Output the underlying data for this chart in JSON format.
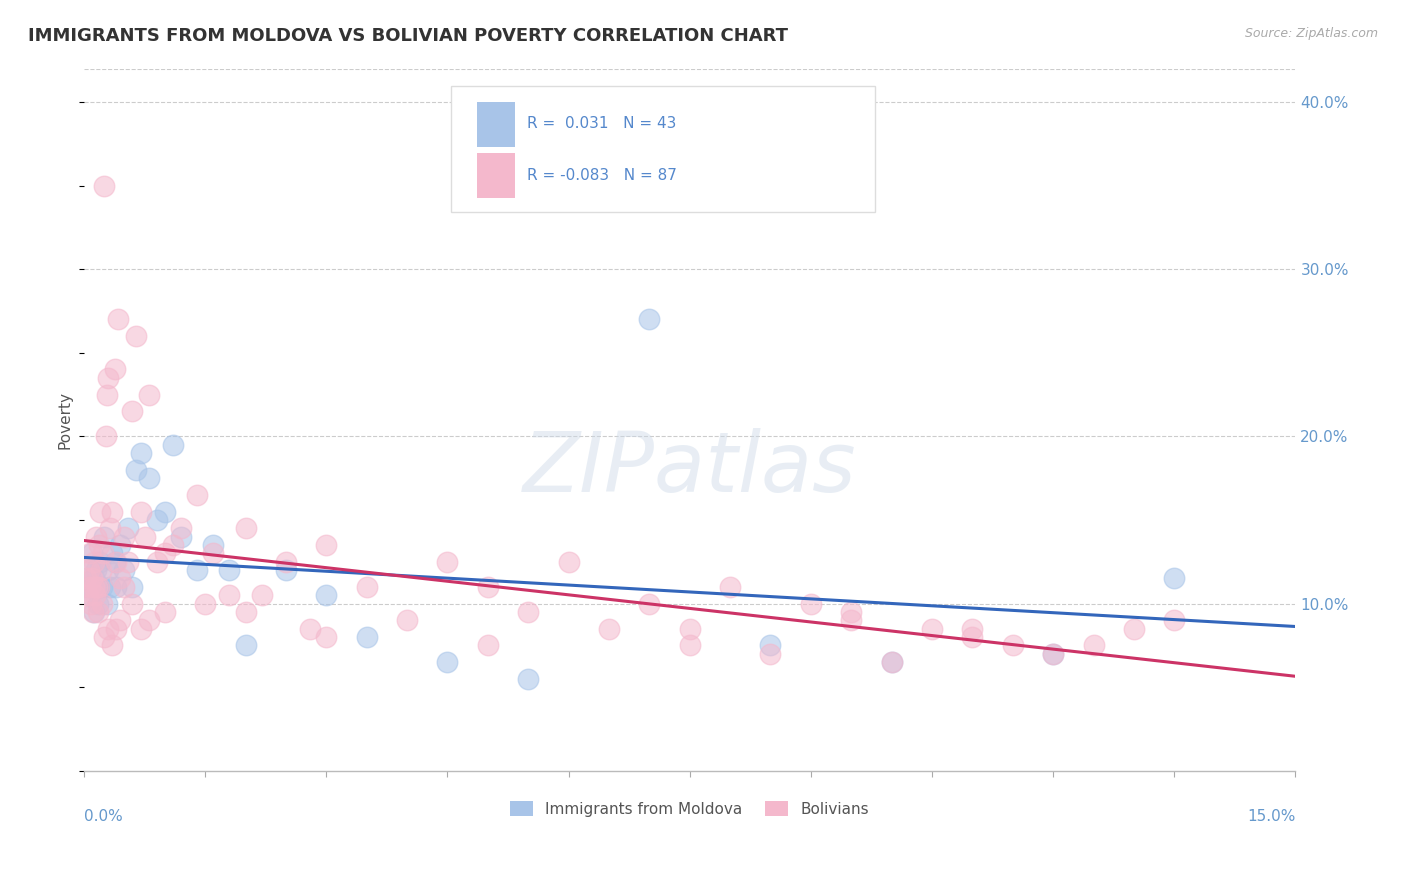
{
  "title": "IMMIGRANTS FROM MOLDOVA VS BOLIVIAN POVERTY CORRELATION CHART",
  "source": "Source: ZipAtlas.com",
  "xlabel_ticks": [
    "0.0%",
    "15.0%"
  ],
  "ylabel_label": "Poverty",
  "xlim": [
    0.0,
    15.0
  ],
  "ylim": [
    0.0,
    42.0
  ],
  "yticks": [
    10.0,
    20.0,
    30.0,
    40.0
  ],
  "ytick_labels": [
    "10.0%",
    "20.0%",
    "30.0%",
    "40.0%"
  ],
  "background_color": "#ffffff",
  "grid_color": "#cccccc",
  "watermark": "ZIPatlas",
  "legend_R1": "R =  0.031",
  "legend_N1": "N = 43",
  "legend_R2": "R = -0.083",
  "legend_N2": "N = 87",
  "series": [
    {
      "name": "Immigrants from Moldova",
      "color": "#a8c4e8",
      "edge_color": "#a8c4e8",
      "line_color": "#3366bb",
      "trend_start_y": 11.5,
      "trend_end_y": 12.5,
      "x": [
        0.05,
        0.07,
        0.08,
        0.1,
        0.12,
        0.13,
        0.15,
        0.17,
        0.18,
        0.2,
        0.22,
        0.25,
        0.28,
        0.3,
        0.32,
        0.35,
        0.38,
        0.4,
        0.45,
        0.5,
        0.55,
        0.6,
        0.65,
        0.7,
        0.8,
        0.9,
        1.0,
        1.1,
        1.2,
        1.4,
        1.6,
        1.8,
        2.0,
        2.5,
        3.0,
        3.5,
        4.5,
        5.5,
        7.0,
        8.5,
        10.0,
        12.0,
        13.5
      ],
      "y": [
        11.0,
        12.0,
        10.5,
        13.0,
        11.5,
        9.5,
        12.0,
        10.0,
        11.0,
        12.5,
        11.0,
        14.0,
        10.0,
        12.0,
        11.0,
        13.0,
        12.5,
        11.0,
        13.5,
        12.0,
        14.5,
        11.0,
        18.0,
        19.0,
        17.5,
        15.0,
        15.5,
        19.5,
        14.0,
        12.0,
        13.5,
        12.0,
        7.5,
        12.0,
        10.5,
        8.0,
        6.5,
        5.5,
        27.0,
        7.5,
        6.5,
        7.0,
        11.5
      ]
    },
    {
      "name": "Bolivians",
      "color": "#f4b8cc",
      "edge_color": "#f4b8cc",
      "line_color": "#cc3366",
      "trend_start_y": 12.5,
      "trend_end_y": 8.5,
      "x": [
        0.03,
        0.05,
        0.06,
        0.07,
        0.08,
        0.09,
        0.1,
        0.11,
        0.12,
        0.13,
        0.14,
        0.15,
        0.16,
        0.17,
        0.18,
        0.19,
        0.2,
        0.21,
        0.22,
        0.23,
        0.25,
        0.27,
        0.28,
        0.3,
        0.32,
        0.35,
        0.38,
        0.4,
        0.42,
        0.45,
        0.5,
        0.55,
        0.6,
        0.65,
        0.7,
        0.75,
        0.8,
        0.9,
        1.0,
        1.1,
        1.2,
        1.4,
        1.6,
        1.8,
        2.0,
        2.2,
        2.5,
        2.8,
        3.0,
        3.5,
        4.0,
        4.5,
        5.0,
        5.5,
        6.0,
        6.5,
        7.0,
        7.5,
        8.0,
        8.5,
        9.0,
        9.5,
        10.0,
        10.5,
        11.0,
        11.5,
        12.0,
        12.5,
        13.0,
        0.25,
        0.3,
        0.35,
        0.4,
        0.45,
        0.5,
        0.6,
        0.7,
        0.8,
        1.0,
        1.5,
        2.0,
        3.0,
        5.0,
        7.5,
        9.5,
        11.0,
        13.5
      ],
      "y": [
        11.5,
        10.5,
        12.0,
        11.0,
        13.0,
        10.0,
        11.5,
        9.5,
        12.5,
        11.0,
        10.5,
        14.0,
        11.0,
        9.5,
        13.5,
        11.0,
        15.5,
        12.0,
        10.0,
        13.0,
        35.0,
        20.0,
        22.5,
        23.5,
        14.5,
        15.5,
        24.0,
        12.5,
        27.0,
        11.5,
        14.0,
        12.5,
        21.5,
        26.0,
        15.5,
        14.0,
        22.5,
        12.5,
        13.0,
        13.5,
        14.5,
        16.5,
        13.0,
        10.5,
        14.5,
        10.5,
        12.5,
        8.5,
        13.5,
        11.0,
        9.0,
        12.5,
        11.0,
        9.5,
        12.5,
        8.5,
        10.0,
        8.5,
        11.0,
        7.0,
        10.0,
        9.5,
        6.5,
        8.5,
        8.5,
        7.5,
        7.0,
        7.5,
        8.5,
        8.0,
        8.5,
        7.5,
        8.5,
        9.0,
        11.0,
        10.0,
        8.5,
        9.0,
        9.5,
        10.0,
        9.5,
        8.0,
        7.5,
        7.5,
        9.0,
        8.0,
        9.0
      ]
    }
  ]
}
